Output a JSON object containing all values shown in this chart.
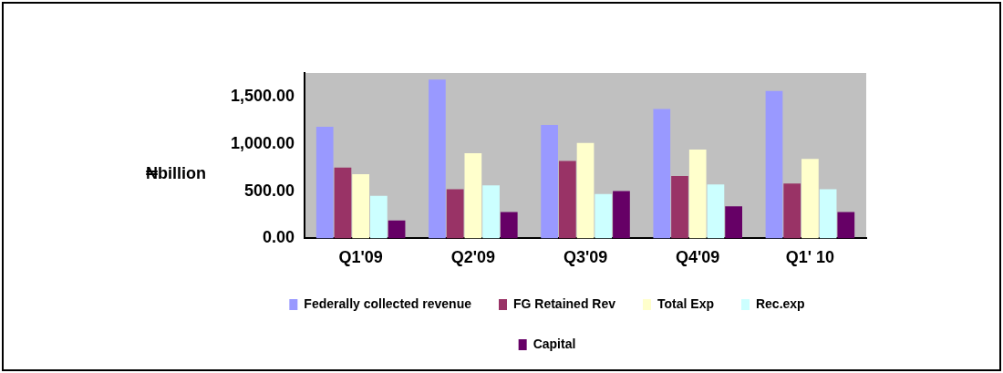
{
  "chart_data": {
    "type": "bar",
    "ylabel": "₦billion",
    "categories": [
      "Q1'09",
      "Q2'09",
      "Q3'09",
      "Q4'09",
      "Q1' 10"
    ],
    "series": [
      {
        "name": "Federally collected revenue",
        "color": "#9999ff",
        "values": [
          1180,
          1680,
          1200,
          1370,
          1560
        ]
      },
      {
        "name": "FG Retained Rev",
        "color": "#993366",
        "values": [
          750,
          520,
          820,
          660,
          580
        ]
      },
      {
        "name": "Total Exp",
        "color": "#ffffcc",
        "values": [
          680,
          900,
          1010,
          940,
          840
        ]
      },
      {
        "name": "Rec.exp",
        "color": "#ccffff",
        "values": [
          450,
          560,
          470,
          570,
          520
        ]
      },
      {
        "name": "Capital",
        "color": "#660066",
        "values": [
          190,
          280,
          500,
          340,
          280
        ]
      }
    ],
    "ylim": [
      0,
      1750
    ],
    "yticks": [
      {
        "value": 0,
        "label": "0.00"
      },
      {
        "value": 500,
        "label": "500.00"
      },
      {
        "value": 1000,
        "label": "1,000.00"
      },
      {
        "value": 1500,
        "label": "1,500.00"
      }
    ],
    "grid": false,
    "legend": "bottom"
  }
}
